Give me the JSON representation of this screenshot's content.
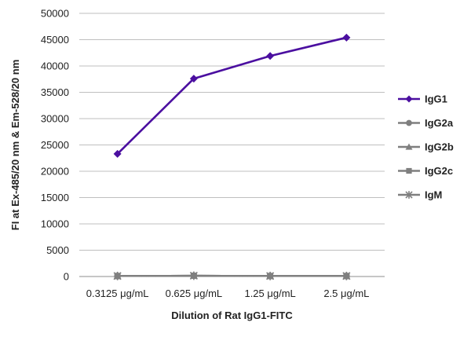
{
  "chart_data": {
    "type": "line",
    "title": "",
    "xlabel": "Dilution of Rat IgG1-FITC",
    "ylabel": "FI at Ex-485/20 nm & Em-528/20 nm",
    "categories": [
      "0.3125 μg/mL",
      "0.625 μg/mL",
      "1.25 μg/mL",
      "2.5 μg/mL"
    ],
    "ylim": [
      0,
      50000
    ],
    "yticks": [
      "0",
      "5000",
      "10000",
      "15000",
      "20000",
      "25000",
      "30000",
      "35000",
      "40000",
      "45000",
      "50000"
    ],
    "grid": true,
    "legend_position": "right",
    "series": [
      {
        "name": "IgG1",
        "values": [
          23300,
          37600,
          41900,
          45400
        ],
        "color": "#4b0fa0",
        "marker": "diamond"
      },
      {
        "name": "IgG2a",
        "values": [
          100,
          150,
          100,
          100
        ],
        "color": "#7f7f7f",
        "marker": "circle"
      },
      {
        "name": "IgG2b",
        "values": [
          100,
          150,
          100,
          100
        ],
        "color": "#7f7f7f",
        "marker": "triangle"
      },
      {
        "name": "IgG2c",
        "values": [
          100,
          150,
          100,
          100
        ],
        "color": "#7f7f7f",
        "marker": "square"
      },
      {
        "name": "IgM",
        "values": [
          100,
          150,
          100,
          100
        ],
        "color": "#7f7f7f",
        "marker": "star"
      }
    ]
  }
}
